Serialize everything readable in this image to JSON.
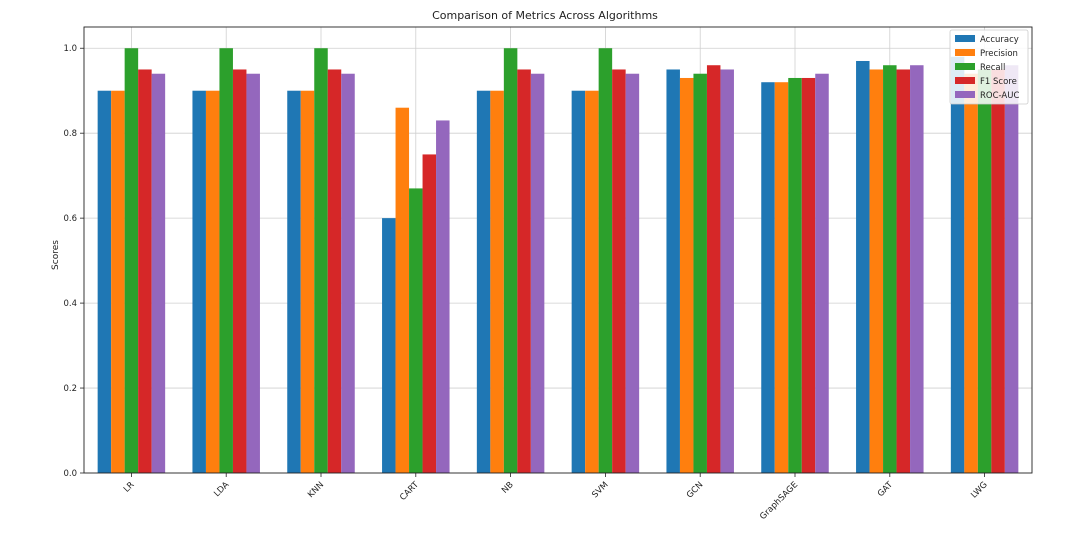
{
  "chart_data": {
    "type": "bar",
    "title": "Comparison of Metrics Across Algorithms",
    "xlabel": "",
    "ylabel": "Scores",
    "ylim": [
      0,
      1.05
    ],
    "yticks": [
      "0.0",
      "0.2",
      "0.4",
      "0.6",
      "0.8",
      "1.0"
    ],
    "grid": true,
    "legend_position": "top-right",
    "categories": [
      "LR",
      "LDA",
      "KNN",
      "CART",
      "NB",
      "SVM",
      "GCN",
      "GraphSAGE",
      "GAT",
      "LWG"
    ],
    "series": [
      {
        "name": "Accuracy",
        "color": "#1f77b4",
        "values": [
          0.9,
          0.9,
          0.9,
          0.6,
          0.9,
          0.9,
          0.95,
          0.92,
          0.97,
          0.98
        ]
      },
      {
        "name": "Precision",
        "color": "#ff7f0e",
        "values": [
          0.9,
          0.9,
          0.9,
          0.86,
          0.9,
          0.9,
          0.93,
          0.92,
          0.95,
          0.94
        ]
      },
      {
        "name": "Recall",
        "color": "#2ca02c",
        "values": [
          1.0,
          1.0,
          1.0,
          0.67,
          1.0,
          1.0,
          0.94,
          0.93,
          0.96,
          0.95
        ]
      },
      {
        "name": "F1 Score",
        "color": "#d62728",
        "values": [
          0.95,
          0.95,
          0.95,
          0.75,
          0.95,
          0.95,
          0.96,
          0.93,
          0.95,
          0.95
        ]
      },
      {
        "name": "ROC-AUC",
        "color": "#9467bd",
        "values": [
          0.94,
          0.94,
          0.94,
          0.83,
          0.94,
          0.94,
          0.95,
          0.94,
          0.96,
          0.96
        ]
      }
    ]
  }
}
